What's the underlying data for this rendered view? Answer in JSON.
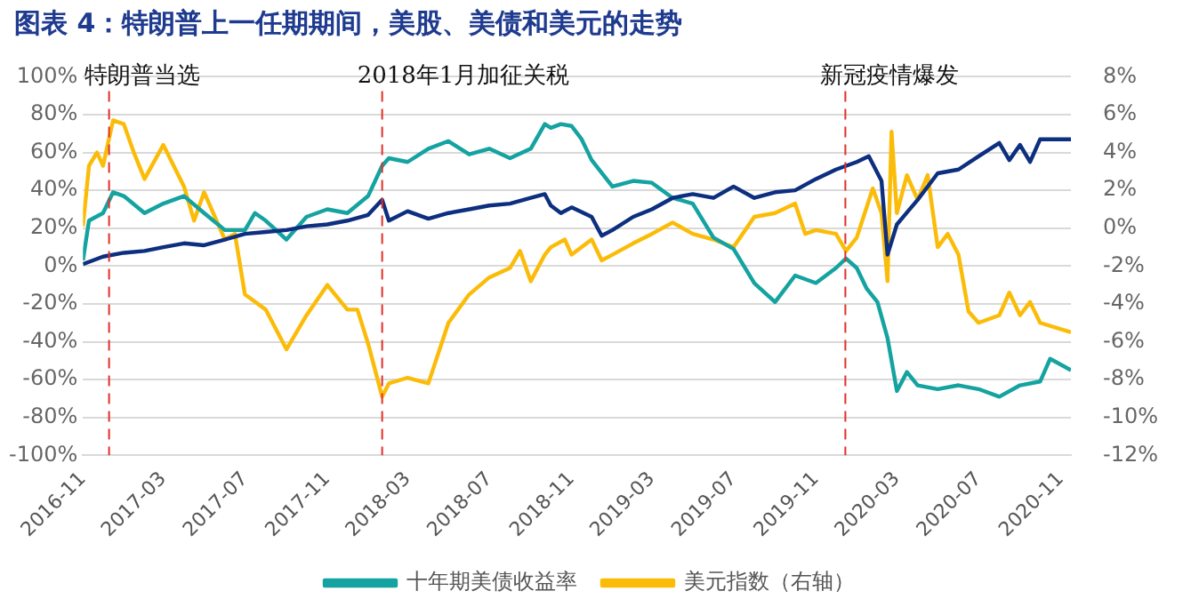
{
  "chart_data": {
    "type": "line",
    "title": "图表 4：特朗普上一任期期间，美股、美债和美元的走势",
    "xlim": [
      "2016-11-01",
      "2020-11-16"
    ],
    "xticks": [
      {
        "value": "2016-11",
        "label": "2016-11"
      },
      {
        "value": "2017-03",
        "label": "2017-03"
      },
      {
        "value": "2017-07",
        "label": "2017-07"
      },
      {
        "value": "2017-11",
        "label": "2017-11"
      },
      {
        "value": "2018-03",
        "label": "2018-03"
      },
      {
        "value": "2018-07",
        "label": "2018-07"
      },
      {
        "value": "2018-11",
        "label": "2018-11"
      },
      {
        "value": "2019-03",
        "label": "2019-03"
      },
      {
        "value": "2019-07",
        "label": "2019-07"
      },
      {
        "value": "2019-11",
        "label": "2019-11"
      },
      {
        "value": "2020-03",
        "label": "2020-03"
      },
      {
        "value": "2020-07",
        "label": "2020-07"
      },
      {
        "value": "2020-11",
        "label": "2020-11"
      }
    ],
    "ylim": [
      -100,
      100
    ],
    "yticks": [
      {
        "value": -100,
        "label": "-100%"
      },
      {
        "value": -80,
        "label": "-80%"
      },
      {
        "value": -60,
        "label": "-60%"
      },
      {
        "value": -40,
        "label": "-40%"
      },
      {
        "value": -20,
        "label": "-20%"
      },
      {
        "value": 0,
        "label": "0%"
      },
      {
        "value": 20,
        "label": "20%"
      },
      {
        "value": 40,
        "label": "40%"
      },
      {
        "value": 60,
        "label": "60%"
      },
      {
        "value": 80,
        "label": "80%"
      },
      {
        "value": 100,
        "label": "100%"
      }
    ],
    "y2lim": [
      -12,
      8
    ],
    "y2ticks": [
      {
        "value": -12,
        "label": "-12%"
      },
      {
        "value": -10,
        "label": "-10%"
      },
      {
        "value": -8,
        "label": "-8%"
      },
      {
        "value": -6,
        "label": "-6%"
      },
      {
        "value": -4,
        "label": "-4%"
      },
      {
        "value": -2,
        "label": "-2%"
      },
      {
        "value": 0,
        "label": "0%"
      },
      {
        "value": 2,
        "label": "2%"
      },
      {
        "value": 4,
        "label": "4%"
      },
      {
        "value": 6,
        "label": "6%"
      },
      {
        "value": 8,
        "label": "8%"
      }
    ],
    "grid": "y",
    "legend": "bottom",
    "marker": "none",
    "line_style": "solid",
    "ref_lines": [
      {
        "axis": "x",
        "value": "2016-12-10",
        "label": "特朗普当选",
        "color": "#e0302a",
        "line_style": "dashed"
      },
      {
        "axis": "x",
        "value": "2018-01-22",
        "label": "2018年1月加征关税",
        "color": "#e0302a",
        "line_style": "dashed"
      },
      {
        "axis": "x",
        "value": "2019-12-15",
        "label": "新冠疫情爆发",
        "color": "#e0302a",
        "line_style": "dashed"
      }
    ],
    "series": [
      {
        "color": "#0d2f7f",
        "x": [
          "2016-11-01",
          "2016-12-01",
          "2017-01-01",
          "2017-02-01",
          "2017-03-01",
          "2017-04-01",
          "2017-05-01",
          "2017-06-01",
          "2017-07-01",
          "2017-08-01",
          "2017-09-01",
          "2017-10-01",
          "2017-11-01",
          "2017-12-01",
          "2018-01-01",
          "2018-01-22",
          "2018-02-01",
          "2018-03-01",
          "2018-04-01",
          "2018-05-01",
          "2018-06-01",
          "2018-07-01",
          "2018-08-01",
          "2018-09-01",
          "2018-09-22",
          "2018-10-01",
          "2018-10-16",
          "2018-11-01",
          "2018-12-01",
          "2018-12-16",
          "2019-01-01",
          "2019-02-01",
          "2019-03-01",
          "2019-04-01",
          "2019-05-01",
          "2019-06-01",
          "2019-07-01",
          "2019-08-01",
          "2019-09-01",
          "2019-10-01",
          "2019-11-01",
          "2019-12-01",
          "2020-01-01",
          "2020-01-19",
          "2020-02-07",
          "2020-02-16",
          "2020-03-01",
          "2020-04-01",
          "2020-05-01",
          "2020-06-01",
          "2020-07-01",
          "2020-08-01",
          "2020-08-16",
          "2020-09-01",
          "2020-09-16",
          "2020-10-01",
          "2020-11-16"
        ],
        "values": [
          1,
          5,
          7,
          8,
          10,
          12,
          11,
          14,
          17,
          18,
          19,
          21,
          22,
          24,
          27,
          35,
          24,
          29,
          25,
          28,
          30,
          32,
          33,
          36,
          38,
          32,
          28,
          31,
          26,
          16,
          19,
          26,
          30,
          36,
          38,
          36,
          42,
          36,
          39,
          40,
          46,
          51,
          55,
          58,
          45,
          6,
          22,
          35,
          49,
          51,
          58,
          65,
          56,
          64,
          55,
          67,
          67
        ]
      },
      {
        "name": "十年期美债收益率",
        "color": "#14a3a0",
        "x": [
          "2016-11-01",
          "2016-11-10",
          "2016-12-01",
          "2016-12-16",
          "2017-01-01",
          "2017-02-01",
          "2017-03-01",
          "2017-04-01",
          "2017-05-01",
          "2017-06-01",
          "2017-07-01",
          "2017-07-16",
          "2017-08-01",
          "2017-09-01",
          "2017-10-01",
          "2017-11-01",
          "2017-12-01",
          "2018-01-01",
          "2018-01-22",
          "2018-02-01",
          "2018-03-01",
          "2018-04-01",
          "2018-05-01",
          "2018-06-01",
          "2018-07-01",
          "2018-08-01",
          "2018-09-01",
          "2018-09-22",
          "2018-10-01",
          "2018-10-16",
          "2018-11-01",
          "2018-11-16",
          "2018-12-01",
          "2019-01-01",
          "2019-02-01",
          "2019-03-01",
          "2019-04-01",
          "2019-05-01",
          "2019-06-01",
          "2019-07-01",
          "2019-08-01",
          "2019-09-01",
          "2019-10-01",
          "2019-11-01",
          "2019-12-01",
          "2019-12-16",
          "2020-01-01",
          "2020-01-16",
          "2020-02-01",
          "2020-02-16",
          "2020-03-01",
          "2020-03-16",
          "2020-04-01",
          "2020-05-01",
          "2020-06-01",
          "2020-07-01",
          "2020-08-01",
          "2020-09-01",
          "2020-10-01",
          "2020-10-16",
          "2020-11-16"
        ],
        "values": [
          3,
          24,
          28,
          39,
          37,
          28,
          33,
          37,
          28,
          19,
          19,
          28,
          24,
          14,
          26,
          30,
          28,
          37,
          53,
          57,
          55,
          62,
          66,
          59,
          62,
          57,
          62,
          75,
          73,
          75,
          74,
          67,
          56,
          42,
          45,
          44,
          36,
          33,
          15,
          9,
          -9,
          -19,
          -5,
          -9,
          -1,
          4,
          -1,
          -12,
          -19,
          -38,
          -66,
          -56,
          -63,
          -65,
          -63,
          -65,
          -69,
          -63,
          -61,
          -49,
          -55
        ]
      },
      {
        "name": "美元指数（右轴）",
        "color": "#fbbc09",
        "axis": "y2",
        "x": [
          "2016-11-01",
          "2016-11-10",
          "2016-11-22",
          "2016-12-01",
          "2016-12-16",
          "2017-01-01",
          "2017-01-16",
          "2017-02-01",
          "2017-03-01",
          "2017-04-01",
          "2017-04-16",
          "2017-05-01",
          "2017-06-01",
          "2017-06-16",
          "2017-07-01",
          "2017-08-01",
          "2017-09-01",
          "2017-10-01",
          "2017-11-01",
          "2017-12-01",
          "2017-12-16",
          "2018-01-01",
          "2018-01-22",
          "2018-02-01",
          "2018-03-01",
          "2018-04-01",
          "2018-05-01",
          "2018-06-01",
          "2018-07-01",
          "2018-08-01",
          "2018-08-16",
          "2018-09-01",
          "2018-09-22",
          "2018-10-01",
          "2018-10-22",
          "2018-11-01",
          "2018-12-01",
          "2018-12-16",
          "2019-01-01",
          "2019-02-01",
          "2019-03-01",
          "2019-04-01",
          "2019-05-01",
          "2019-06-01",
          "2019-07-01",
          "2019-08-01",
          "2019-09-01",
          "2019-10-01",
          "2019-10-16",
          "2019-11-01",
          "2019-12-01",
          "2019-12-16",
          "2020-01-01",
          "2020-01-25",
          "2020-02-07",
          "2020-02-16",
          "2020-02-22",
          "2020-03-01",
          "2020-03-16",
          "2020-04-01",
          "2020-04-16",
          "2020-05-01",
          "2020-05-16",
          "2020-06-01",
          "2020-06-16",
          "2020-07-01",
          "2020-08-01",
          "2020-08-16",
          "2020-09-01",
          "2020-09-16",
          "2020-10-01",
          "2020-11-16"
        ],
        "values": [
          0.1,
          3.3,
          4.0,
          3.3,
          5.7,
          5.5,
          4.0,
          2.6,
          4.4,
          2.2,
          0.4,
          1.9,
          -0.6,
          -0.3,
          -3.5,
          -4.3,
          -6.4,
          -4.6,
          -3.0,
          -4.3,
          -4.3,
          -6.1,
          -8.9,
          -8.2,
          -7.9,
          -8.2,
          -5.0,
          -3.5,
          -2.6,
          -2.1,
          -1.2,
          -2.8,
          -1.4,
          -1.0,
          -0.6,
          -1.4,
          -0.6,
          -1.7,
          -1.4,
          -0.8,
          -0.3,
          0.3,
          -0.3,
          -0.6,
          -1.0,
          0.6,
          0.8,
          1.3,
          -0.3,
          -0.1,
          -0.3,
          -1.2,
          -0.5,
          2.1,
          0.8,
          -2.8,
          5.1,
          0.8,
          2.8,
          1.5,
          2.8,
          -1.0,
          -0.3,
          -1.4,
          -4.4,
          -5.0,
          -4.6,
          -3.4,
          -4.6,
          -3.9,
          -5.0,
          -5.5
        ]
      }
    ]
  }
}
